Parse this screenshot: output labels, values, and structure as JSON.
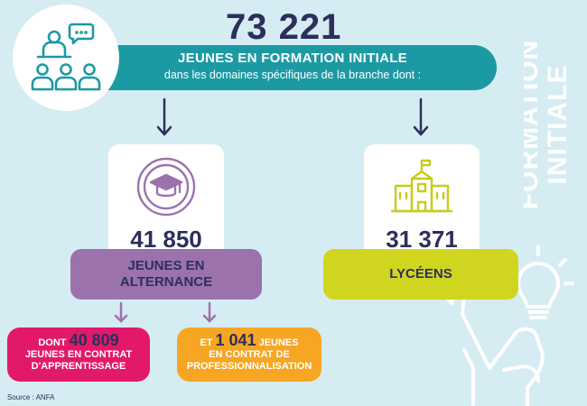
{
  "header": {
    "total": "73 221",
    "banner_line1": "JEUNES EN FORMATION INITIALE",
    "banner_line2": "dans les domaines spécifiques de la branche dont :"
  },
  "alternance": {
    "count": "41 850",
    "label_line1": "JEUNES EN",
    "label_line2": "ALTERNANCE"
  },
  "lycees": {
    "count": "31 371",
    "label": "LYCÉENS"
  },
  "apprentissage": {
    "prefix": "DONT",
    "count": "40 809",
    "line2": "JEUNES EN CONTRAT",
    "line3": "D'APPRENTISSAGE"
  },
  "professionnalisation": {
    "prefix": "ET",
    "count": "1 041",
    "suffix": "JEUNES",
    "line2": "EN CONTRAT DE",
    "line3": "PROFESSIONNALISATION"
  },
  "side_title": {
    "line1": "FORMATION",
    "line2": "INITIALE"
  },
  "source": "Source : ANFA",
  "colors": {
    "background": "#d6ecf3",
    "teal": "#1b9aa4",
    "navy": "#2c2f5c",
    "purple": "#9c72ad",
    "lime": "#d0d620",
    "pink": "#e2196a",
    "orange": "#f6a623"
  },
  "icons": [
    "classroom-icon",
    "graduation-cap-icon",
    "school-building-icon",
    "raised-hand-lightbulb-icon"
  ]
}
